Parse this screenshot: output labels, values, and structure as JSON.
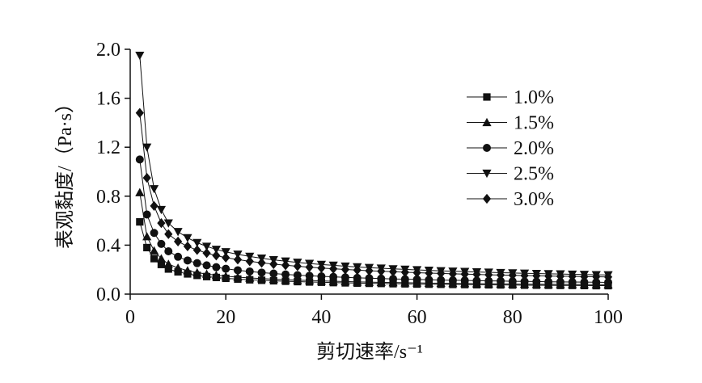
{
  "chart_data": {
    "type": "scatter",
    "xlabel": "剪切速率/s⁻¹",
    "ylabel": "表观黏度/（Pa·s）",
    "xlim": [
      0,
      100
    ],
    "ylim": [
      0,
      2.0
    ],
    "xticks": [
      "0",
      "20",
      "40",
      "60",
      "80",
      "100"
    ],
    "yticks": [
      "0.0",
      "0.4",
      "0.8",
      "1.2",
      "1.6",
      "2.0"
    ],
    "grid": false,
    "legend_position": "top-right",
    "x": [
      2,
      3.5,
      5,
      6.5,
      8,
      10,
      12,
      14,
      16,
      18,
      20,
      22.5,
      25,
      27.5,
      30,
      32.5,
      35,
      37.5,
      40,
      42.5,
      45,
      47.5,
      50,
      52.5,
      55,
      57.5,
      60,
      62.5,
      65,
      67.5,
      70,
      72.5,
      75,
      77.5,
      80,
      82.5,
      85,
      87.5,
      90,
      92.5,
      95,
      97.5,
      100
    ],
    "series": [
      {
        "name": "1.0%",
        "marker": "square",
        "values": [
          0.59,
          0.38,
          0.29,
          0.242,
          0.205,
          0.182,
          0.165,
          0.153,
          0.143,
          0.136,
          0.129,
          0.123,
          0.117,
          0.113,
          0.109,
          0.105,
          0.102,
          0.099,
          0.097,
          0.094,
          0.092,
          0.09,
          0.088,
          0.087,
          0.085,
          0.084,
          0.082,
          0.081,
          0.08,
          0.079,
          0.078,
          0.077,
          0.076,
          0.075,
          0.074,
          0.073,
          0.073,
          0.072,
          0.071,
          0.071,
          0.07,
          0.069,
          0.069
        ]
      },
      {
        "name": "1.5%",
        "marker": "triangle-up",
        "values": [
          0.83,
          0.47,
          0.355,
          0.29,
          0.245,
          0.214,
          0.192,
          0.176,
          0.164,
          0.154,
          0.146,
          0.139,
          0.132,
          0.127,
          0.122,
          0.118,
          0.114,
          0.111,
          0.108,
          0.105,
          0.103,
          0.1,
          0.098,
          0.096,
          0.095,
          0.093,
          0.092,
          0.09,
          0.089,
          0.088,
          0.087,
          0.086,
          0.085,
          0.084,
          0.083,
          0.082,
          0.081,
          0.08,
          0.08,
          0.079,
          0.078,
          0.078,
          0.077
        ]
      },
      {
        "name": "2.0%",
        "marker": "circle",
        "values": [
          1.1,
          0.65,
          0.5,
          0.41,
          0.35,
          0.305,
          0.275,
          0.253,
          0.235,
          0.22,
          0.207,
          0.195,
          0.185,
          0.176,
          0.168,
          0.161,
          0.155,
          0.15,
          0.145,
          0.141,
          0.137,
          0.133,
          0.13,
          0.127,
          0.124,
          0.122,
          0.12,
          0.117,
          0.115,
          0.113,
          0.112,
          0.11,
          0.108,
          0.107,
          0.105,
          0.104,
          0.103,
          0.101,
          0.1,
          0.099,
          0.098,
          0.097,
          0.096
        ]
      },
      {
        "name": "2.5%",
        "marker": "triangle-down",
        "values": [
          1.95,
          1.2,
          0.86,
          0.69,
          0.58,
          0.51,
          0.46,
          0.42,
          0.39,
          0.365,
          0.345,
          0.325,
          0.308,
          0.293,
          0.28,
          0.269,
          0.259,
          0.25,
          0.242,
          0.235,
          0.228,
          0.222,
          0.216,
          0.211,
          0.206,
          0.202,
          0.198,
          0.194,
          0.19,
          0.187,
          0.184,
          0.181,
          0.178,
          0.175,
          0.173,
          0.17,
          0.168,
          0.166,
          0.164,
          0.162,
          0.16,
          0.158,
          0.157
        ]
      },
      {
        "name": "3.0%",
        "marker": "diamond",
        "values": [
          1.48,
          0.95,
          0.72,
          0.58,
          0.49,
          0.43,
          0.39,
          0.36,
          0.335,
          0.315,
          0.298,
          0.282,
          0.268,
          0.256,
          0.245,
          0.236,
          0.228,
          0.22,
          0.213,
          0.207,
          0.201,
          0.196,
          0.191,
          0.187,
          0.183,
          0.179,
          0.175,
          0.172,
          0.169,
          0.166,
          0.163,
          0.161,
          0.158,
          0.156,
          0.154,
          0.152,
          0.15,
          0.148,
          0.146,
          0.145,
          0.143,
          0.142,
          0.14
        ]
      }
    ]
  }
}
